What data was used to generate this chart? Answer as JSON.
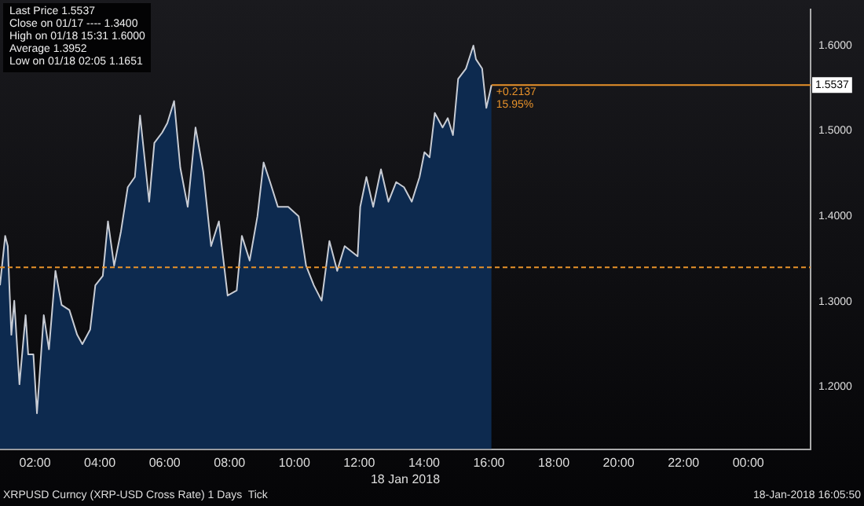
{
  "chart_data": {
    "type": "area",
    "title": "XRPUSD Curncy (XRP-USD Cross Rate) 1 Days  Tick",
    "subtitle": "18-Jan-2018 16:05:50",
    "xlabel": "18 Jan 2018",
    "x": [
      0.92,
      1.08,
      1.16,
      1.27,
      1.36,
      1.52,
      1.71,
      1.79,
      1.95,
      2.06,
      2.27,
      2.43,
      2.63,
      2.82,
      3.06,
      3.3,
      3.46,
      3.7,
      3.86,
      4.09,
      4.25,
      4.44,
      4.65,
      4.86,
      5.08,
      5.24,
      5.36,
      5.52,
      5.68,
      5.92,
      6.08,
      6.29,
      6.48,
      6.71,
      6.95,
      7.19,
      7.43,
      7.67,
      7.94,
      8.22,
      8.38,
      8.62,
      8.86,
      9.05,
      9.25,
      9.49,
      9.81,
      10.13,
      10.36,
      10.6,
      10.84,
      11.08,
      11.32,
      11.55,
      11.95,
      12.03,
      12.22,
      12.43,
      12.67,
      12.9,
      13.14,
      13.38,
      13.62,
      13.86,
      14.01,
      14.17,
      14.33,
      14.57,
      14.73,
      14.89,
      15.05,
      15.29,
      15.52,
      15.6,
      15.79,
      15.92,
      16.08
    ],
    "series": [
      {
        "color": "#c8ccd4",
        "values": [
          1.319,
          1.377,
          1.365,
          1.261,
          1.301,
          1.203,
          1.284,
          1.238,
          1.238,
          1.169,
          1.284,
          1.244,
          1.336,
          1.296,
          1.29,
          1.261,
          1.25,
          1.267,
          1.319,
          1.33,
          1.394,
          1.342,
          1.382,
          1.434,
          1.446,
          1.518,
          1.475,
          1.417,
          1.486,
          1.498,
          1.509,
          1.535,
          1.457,
          1.411,
          1.504,
          1.452,
          1.365,
          1.394,
          1.307,
          1.313,
          1.377,
          1.348,
          1.4,
          1.463,
          1.44,
          1.411,
          1.411,
          1.4,
          1.342,
          1.319,
          1.301,
          1.371,
          1.336,
          1.365,
          1.353,
          1.411,
          1.446,
          1.411,
          1.455,
          1.417,
          1.44,
          1.434,
          1.417,
          1.446,
          1.475,
          1.469,
          1.521,
          1.504,
          1.515,
          1.495,
          1.561,
          1.573,
          1.6,
          1.584,
          1.573,
          1.527,
          1.5537
        ]
      }
    ],
    "xlim": [
      0.92,
      25.92
    ],
    "xticks": [
      {
        "value": 2,
        "label": "02:00"
      },
      {
        "value": 4,
        "label": "04:00"
      },
      {
        "value": 6,
        "label": "06:00"
      },
      {
        "value": 8,
        "label": "08:00"
      },
      {
        "value": 10,
        "label": "10:00"
      },
      {
        "value": 12,
        "label": "12:00"
      },
      {
        "value": 14,
        "label": "14:00"
      },
      {
        "value": 16,
        "label": "16:00"
      },
      {
        "value": 18,
        "label": "18:00"
      },
      {
        "value": 20,
        "label": "20:00"
      },
      {
        "value": 22,
        "label": "22:00"
      },
      {
        "value": 24,
        "label": "00:00"
      }
    ],
    "ylim": [
      1.127,
      1.642
    ],
    "yticks": [
      {
        "value": 1.2,
        "label": "1.2000"
      },
      {
        "value": 1.3,
        "label": "1.3000"
      },
      {
        "value": 1.4,
        "label": "1.4000"
      },
      {
        "value": 1.5,
        "label": "1.5000"
      },
      {
        "value": 1.6,
        "label": "1.6000"
      }
    ],
    "ref_lines": [
      {
        "axis": "y",
        "value": 1.34,
        "color": "#e8922a",
        "line_style": "dashed"
      },
      {
        "axis": "y",
        "value": 1.5537,
        "label": "1.5537",
        "color": "#e8922a"
      }
    ],
    "annotations": [
      "Last Price 1.5537",
      "Close on 01/17 ---- 1.3400",
      "High on 01/18 15:31 1.6000",
      "Average 1.3952",
      "Low on 01/18 02:05 1.1651",
      {
        "text": "+0.2137 15.95%",
        "x": 16.08,
        "y": 1.5537
      }
    ],
    "legend": false
  }
}
